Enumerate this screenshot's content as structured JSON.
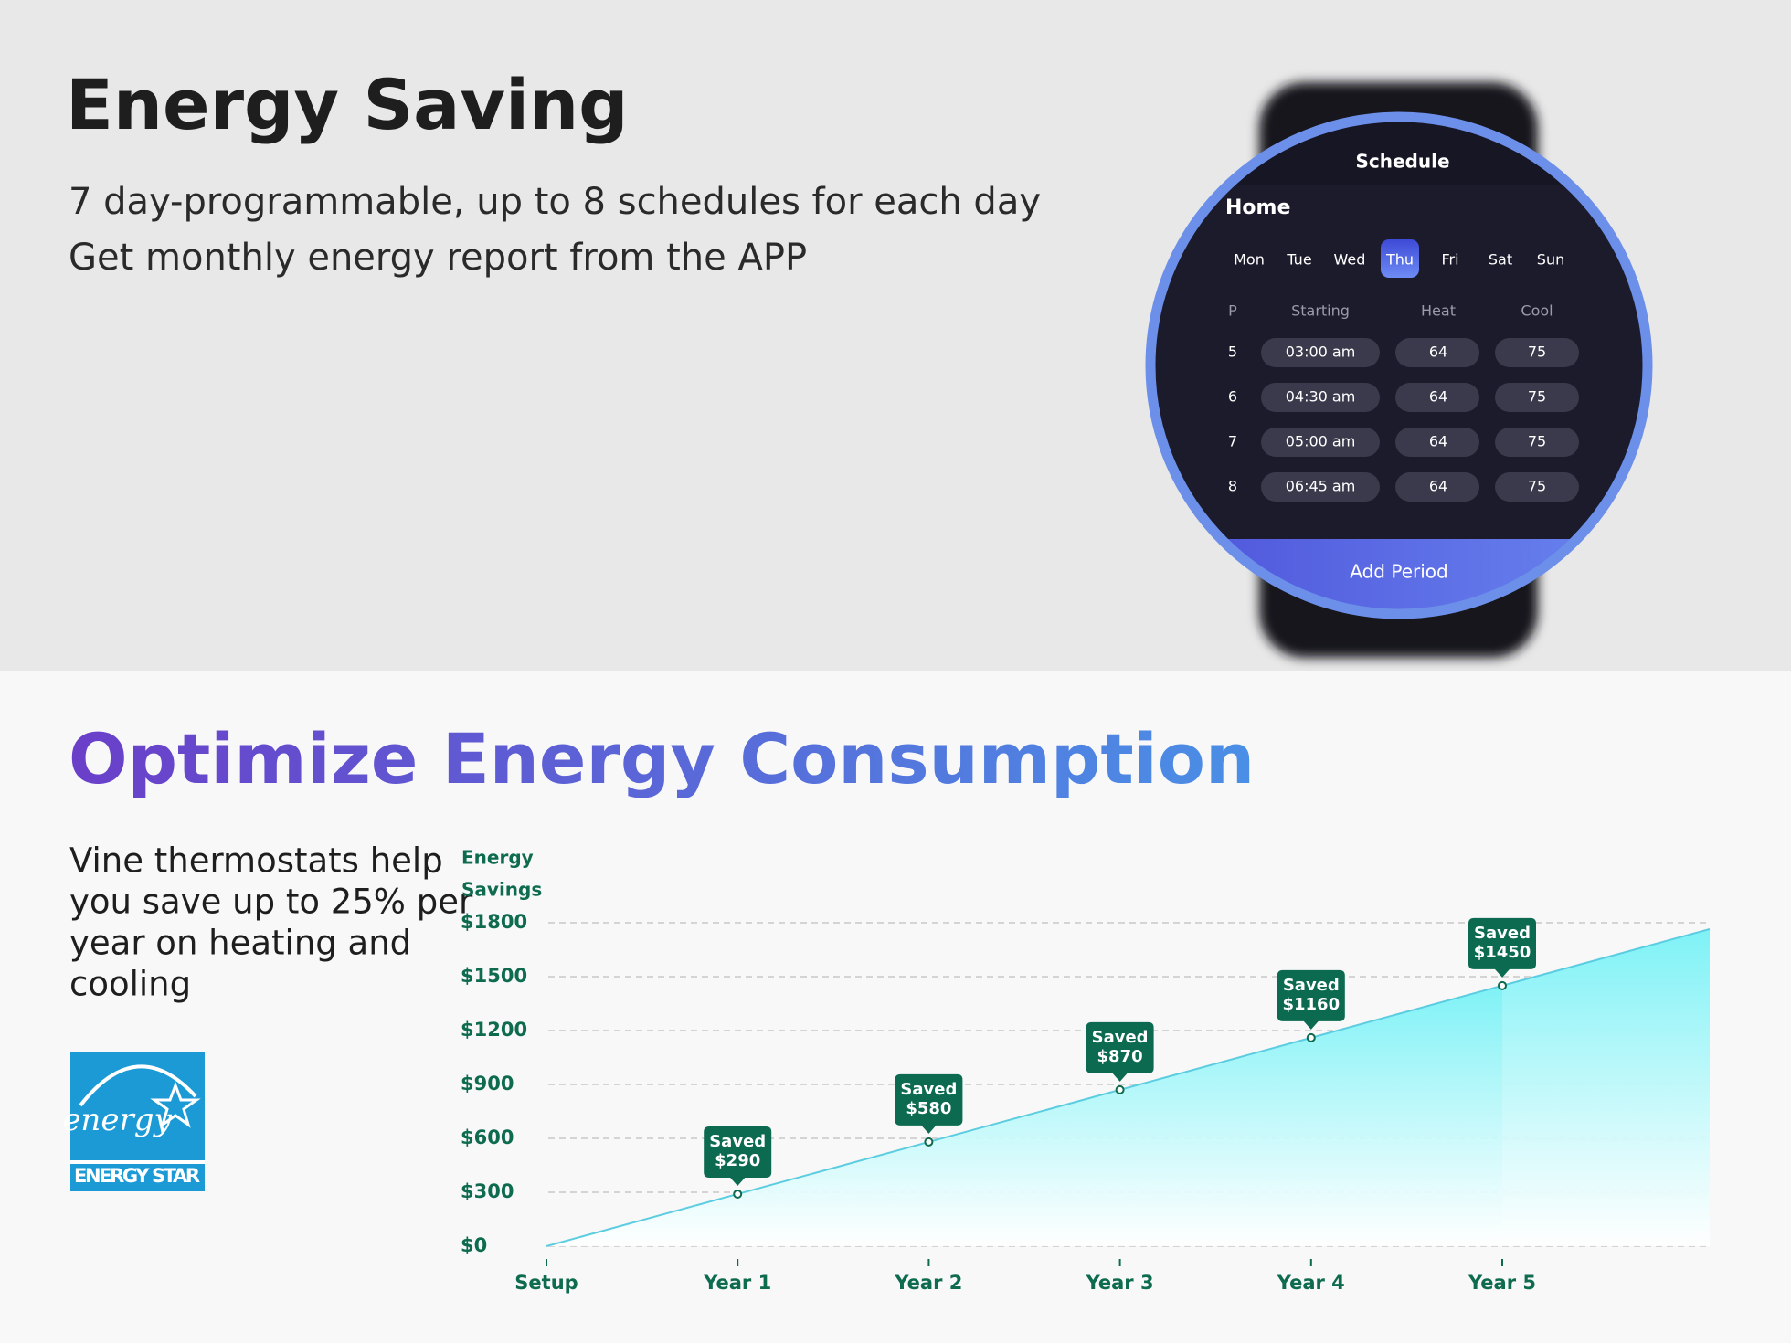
{
  "top": {
    "title": "Energy Saving",
    "lines": [
      "7 day-programmable, up to 8 schedules for each day",
      "Get monthly energy report from the APP"
    ]
  },
  "phone": {
    "header": "Schedule",
    "place": "Home",
    "days": [
      "Mon",
      "Tue",
      "Wed",
      "Thu",
      "Fri",
      "Sat",
      "Sun"
    ],
    "selected_day": 3,
    "columns": [
      "P",
      "Starting",
      "Heat",
      "Cool"
    ],
    "rows": [
      [
        "5",
        "03:00 am",
        "64",
        "75"
      ],
      [
        "6",
        "04:30 am",
        "64",
        "75"
      ],
      [
        "7",
        "05:00 am",
        "64",
        "75"
      ],
      [
        "8",
        "06:45 am",
        "64",
        "75"
      ]
    ],
    "button": "Add Period"
  },
  "bottom": {
    "title": "Optimize Energy Consumption",
    "lines": [
      "Vine thermostats help",
      "you save up to 25% per",
      "year on heating and",
      "cooling"
    ],
    "logo_script": "energy",
    "logo_text": "ENERGY STAR"
  },
  "chart_data": {
    "type": "area",
    "y_label": [
      "Energy",
      "Savings"
    ],
    "categories": [
      "Setup",
      "Year 1",
      "Year 2",
      "Year 3",
      "Year 4",
      "Year 5"
    ],
    "values": [
      0,
      290,
      580,
      870,
      1160,
      1450
    ],
    "callout_text": "Saved",
    "value_labels": [
      null,
      "$290",
      "$580",
      "$870",
      "$1160",
      "$1450"
    ],
    "ylim": [
      0,
      1800
    ],
    "yticks": [
      {
        "value": 0,
        "label": "$0"
      },
      {
        "value": 300,
        "label": "$300"
      },
      {
        "value": 600,
        "label": "$600"
      },
      {
        "value": 900,
        "label": "$900"
      },
      {
        "value": 1200,
        "label": "$1200"
      },
      {
        "value": 1500,
        "label": "$1500"
      },
      {
        "value": 1800,
        "label": "$1800"
      }
    ],
    "grid": true,
    "color": "#5ccde0"
  }
}
